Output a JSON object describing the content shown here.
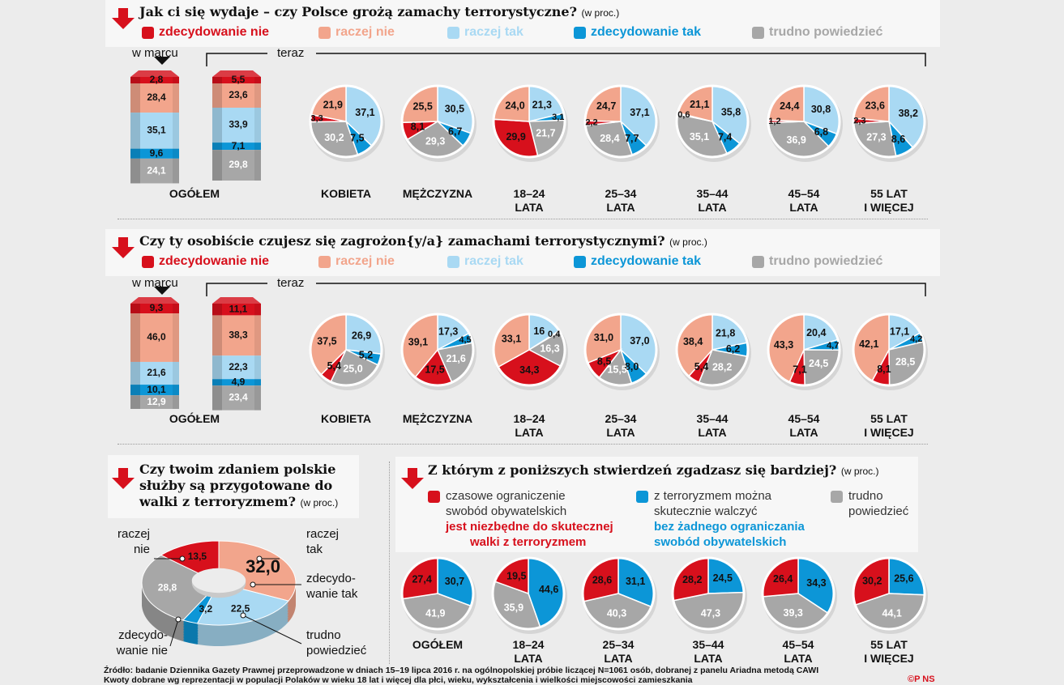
{
  "colors": {
    "zdecydowanie_nie": "#d7101c",
    "raczej_nie": "#f2a58c",
    "raczej_tak": "#a9d9f3",
    "zdecydowanie_tak": "#0c96d7",
    "trudno": "#a7a7a7"
  },
  "icons": {
    "section_marker": "down-arrow-icon"
  },
  "legend": [
    {
      "label": "zdecydowanie nie",
      "key": "zdecydowanie_nie"
    },
    {
      "label": "raczej nie",
      "key": "raczej_nie"
    },
    {
      "label": "raczej tak",
      "key": "raczej_tak"
    },
    {
      "label": "zdecydowanie tak",
      "key": "zdecydowanie_tak"
    },
    {
      "label": "trudno powiedzieć",
      "key": "trudno"
    }
  ],
  "labels": {
    "march": "w marcu",
    "now": "teraz",
    "overall": "OGÓŁEM"
  },
  "categories": [
    [
      "KOBIETA",
      ""
    ],
    [
      "MĘŻCZYZNA",
      ""
    ],
    [
      "18–24",
      "LATA"
    ],
    [
      "25–34",
      "LATA"
    ],
    [
      "35–44",
      "LATA"
    ],
    [
      "45–54",
      "LATA"
    ],
    [
      "55 LAT",
      "I WIĘCEJ"
    ]
  ],
  "chart_data": [
    {
      "type": "bar+pie",
      "title": "Jak ci się wydaje – czy Polsce grożą zamachy terrorystyczne?",
      "unit": "(w proc.)",
      "series_order": [
        "zdecydowanie nie",
        "raczej nie",
        "raczej tak",
        "zdecydowanie tak",
        "trudno powiedzieć"
      ],
      "overall": {
        "w marcu": [
          2.8,
          28.4,
          35.1,
          9.6,
          24.1
        ],
        "teraz": [
          5.5,
          23.6,
          33.9,
          7.1,
          29.8
        ]
      },
      "pies": [
        [
          3.3,
          21.9,
          37.1,
          7.5,
          30.2
        ],
        [
          8.1,
          25.5,
          30.5,
          6.7,
          29.3
        ],
        [
          29.9,
          24.0,
          21.3,
          3.1,
          21.7
        ],
        [
          2.2,
          24.7,
          37.1,
          7.7,
          28.4
        ],
        [
          0.6,
          21.1,
          35.8,
          7.4,
          35.1
        ],
        [
          1.2,
          24.4,
          30.8,
          6.8,
          36.9
        ],
        [
          2.3,
          23.6,
          38.2,
          8.6,
          27.3
        ]
      ]
    },
    {
      "type": "bar+pie",
      "title": "Czy ty osobiście czujesz się zagrożon{y/a} zamachami terrorystycznymi?",
      "unit": "(w proc.)",
      "series_order": [
        "zdecydowanie nie",
        "raczej nie",
        "raczej tak",
        "zdecydowanie tak",
        "trudno powiedzieć"
      ],
      "overall": {
        "w marcu": [
          9.3,
          46.0,
          21.6,
          10.1,
          12.9
        ],
        "teraz": [
          11.1,
          38.3,
          22.3,
          4.9,
          23.4
        ]
      },
      "pies": [
        [
          5.4,
          37.5,
          26.9,
          5.2,
          25.0
        ],
        [
          17.5,
          39.1,
          17.3,
          4.5,
          21.6
        ],
        [
          34.3,
          33.1,
          "16",
          0.4,
          16.3
        ],
        [
          8.5,
          31.0,
          37.0,
          8.0,
          15.5
        ],
        [
          5.4,
          38.4,
          21.8,
          6.2,
          28.2
        ],
        [
          7.1,
          43.3,
          20.4,
          4.7,
          24.5
        ],
        [
          8.1,
          42.1,
          17.1,
          4.2,
          28.5
        ]
      ]
    },
    {
      "type": "pie",
      "title": "Czy twoim zdaniem polskie służby są przygotowane do walki z terroryzmem?",
      "unit": "(w proc.)",
      "slices": [
        {
          "label": "raczej nie",
          "value": 32.0
        },
        {
          "label": "raczej tak",
          "value": 22.5
        },
        {
          "label": "zdecydo-wanie tak",
          "value": 3.2
        },
        {
          "label": "trudno powiedzieć",
          "value": 28.8
        },
        {
          "label": "zdecydo-wanie nie",
          "value": 13.5
        }
      ]
    },
    {
      "type": "pie",
      "title": "Z którym z poniższych stwierdzeń zgadzasz się bardziej?",
      "unit": "(w proc.)",
      "legend": [
        {
          "line1": "czasowe ograniczenie",
          "line2": "swobód obywatelskich",
          "bold1": "jest niezbędne do skutecznej",
          "bold2": "walki z terroryzmem",
          "key": "zdecydowanie_nie"
        },
        {
          "line1": "z terroryzmem można",
          "line2": "skutecznie walczyć",
          "bold1": "bez żadnego ograniczania",
          "bold2": "swobód obywatelskich",
          "key": "zdecydowanie_tak"
        },
        {
          "line1": "trudno",
          "line2": "powiedzieć",
          "bold1": "",
          "bold2": "",
          "key": "trudno"
        }
      ],
      "categories": [
        [
          "OGÓŁEM",
          ""
        ],
        [
          "18–24",
          "LATA"
        ],
        [
          "25–34",
          "LATA"
        ],
        [
          "35–44",
          "LATA"
        ],
        [
          "45–54",
          "LATA"
        ],
        [
          "55 LAT",
          "I WIĘCEJ"
        ]
      ],
      "pies": [
        [
          27.4,
          30.7,
          41.9
        ],
        [
          19.5,
          44.6,
          35.9
        ],
        [
          28.6,
          31.1,
          40.3
        ],
        [
          28.2,
          24.5,
          47.3
        ],
        [
          26.4,
          34.3,
          39.3
        ],
        [
          30.2,
          25.6,
          44.1
        ]
      ]
    }
  ],
  "footer": [
    "Źródło: badanie Dziennika Gazety Prawnej przeprowadzone w dniach 15–19 lipca 2016 r. na ogólnopolskiej próbie liczącej N=1061 osób, dobranej z panelu Ariadna metodą CAWI",
    "Kwoty dobrane wg reprezentacji w populacji Polaków w wieku 18 lat i więcej dla płci, wieku, wykształcenia i wielkości miejscowości zamieszkania"
  ],
  "credit": "©P NS"
}
